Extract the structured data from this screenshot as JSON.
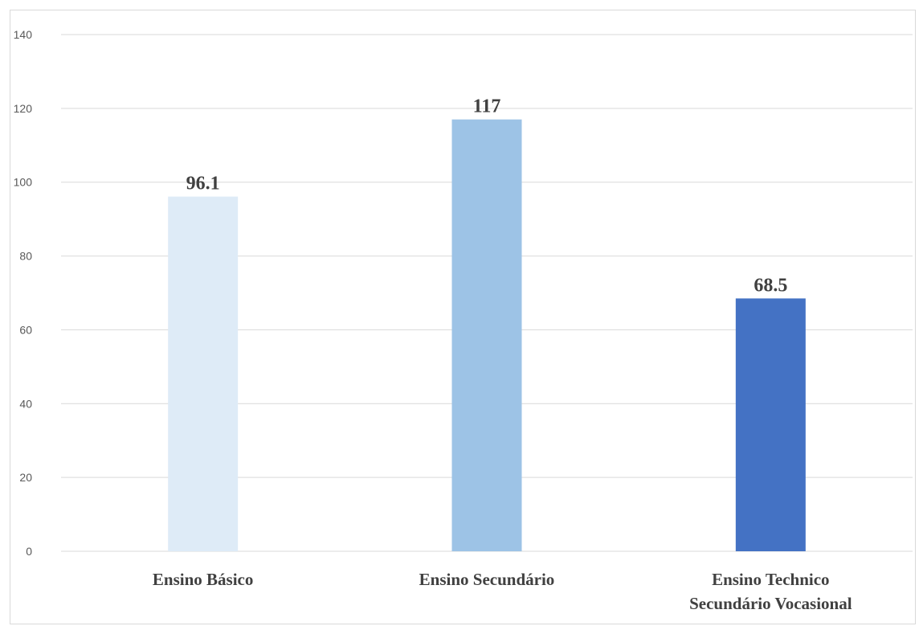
{
  "chart_data": {
    "type": "bar",
    "title": "",
    "xlabel": "",
    "ylabel": "",
    "categories": [
      [
        "Ensino Básico"
      ],
      [
        "Ensino Secundário"
      ],
      [
        "Ensino Technico",
        "Secundário Vocasional"
      ]
    ],
    "values": [
      96.1,
      117,
      68.5
    ],
    "data_labels": [
      "96.1",
      "117",
      "68.5"
    ],
    "ylim": [
      0,
      140
    ],
    "yticks": [
      0,
      20,
      40,
      60,
      80,
      100,
      120,
      140
    ],
    "grid": true,
    "legend": "none",
    "colors": [
      "#deebf7",
      "#9dc3e6",
      "#4472c4"
    ],
    "gridline_color": "#d9d9d9"
  }
}
